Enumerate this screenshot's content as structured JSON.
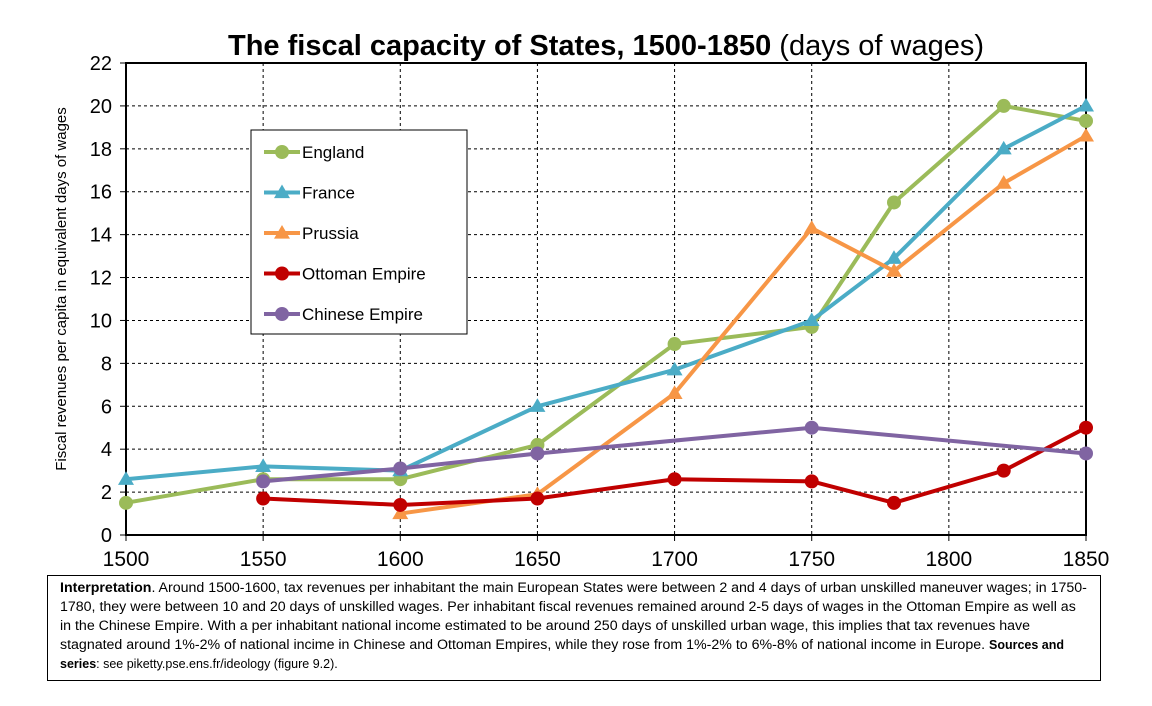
{
  "chart_data": {
    "type": "line",
    "title": "The fiscal capacity of States, 1500-1850",
    "title_suffix": "(days of wages)",
    "ylabel": "Fiscal revenues per capita in equivalent days of wages",
    "xlabel": "",
    "xlim": [
      1500,
      1850
    ],
    "ylim": [
      0,
      22
    ],
    "x_ticks": [
      1500,
      1550,
      1600,
      1650,
      1700,
      1750,
      1800,
      1850
    ],
    "y_ticks": [
      0,
      2,
      4,
      6,
      8,
      10,
      12,
      14,
      16,
      18,
      20,
      22
    ],
    "grid": true,
    "legend_position": "upper-left",
    "series": [
      {
        "name": "England",
        "color": "#9BBB59",
        "marker": "circle",
        "x": [
          1500,
          1550,
          1600,
          1650,
          1700,
          1750,
          1780,
          1820,
          1850
        ],
        "y": [
          1.5,
          2.6,
          2.6,
          4.2,
          8.9,
          9.7,
          15.5,
          20.0,
          19.3
        ]
      },
      {
        "name": "France",
        "color": "#4BACC6",
        "marker": "triangle",
        "x": [
          1500,
          1550,
          1600,
          1650,
          1700,
          1750,
          1780,
          1820,
          1850
        ],
        "y": [
          2.6,
          3.2,
          3.0,
          6.0,
          7.7,
          10.0,
          12.9,
          18.0,
          20.0
        ]
      },
      {
        "name": "Prussia",
        "color": "#F79646",
        "marker": "triangle",
        "x": [
          1600,
          1650,
          1700,
          1750,
          1780,
          1820,
          1850
        ],
        "y": [
          1.0,
          1.9,
          6.6,
          14.3,
          12.3,
          16.4,
          18.6
        ]
      },
      {
        "name": "Ottoman Empire",
        "color": "#C00000",
        "marker": "circle",
        "x": [
          1550,
          1600,
          1650,
          1700,
          1750,
          1780,
          1820,
          1850
        ],
        "y": [
          1.7,
          1.4,
          1.7,
          2.6,
          2.5,
          1.5,
          3.0,
          5.0
        ]
      },
      {
        "name": "Chinese Empire",
        "color": "#8064A2",
        "marker": "circle",
        "x": [
          1550,
          1600,
          1650,
          1750,
          1850
        ],
        "y": [
          2.5,
          3.1,
          3.8,
          5.0,
          3.8
        ]
      }
    ]
  },
  "note": {
    "lead": "Interpretation",
    "body": ". Around 1500-1600, tax revenues per inhabitant  the main European States were between 2 and 4 days of urban unskilled maneuver wages; in 1750-1780, they were between 10 and 20 days of unskilled wages. Per inhabitant fiscal revenues remained around 2-5 days of wages in the Ottoman Empire as well as in the Chinese Empire. With a per inhabitant national income estimated to be around 250 days of unskilled urban wage, this implies that tax revenues have stagnated around 1%-2% of national incime in Chinese and Ottoman Empires, while they rose from 1%-2% to 6%-8% of national income in Europe. ",
    "sources_label": "Sources and series",
    "sources_text": ": see piketty.pse.ens.fr/ideology (figure 9.2)."
  }
}
